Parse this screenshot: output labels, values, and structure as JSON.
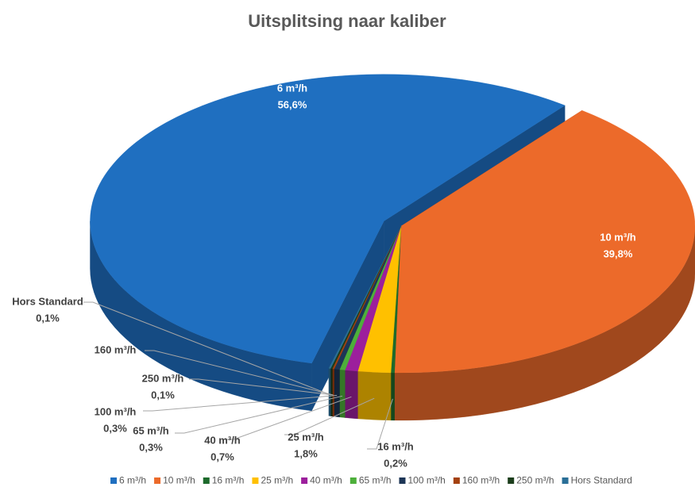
{
  "chart_data": {
    "type": "pie3d",
    "title": "Uitsplitsing naar kaliber",
    "categories": [
      "6 m³/h",
      "10 m³/h",
      "16 m³/h",
      "25 m³/h",
      "40 m³/h",
      "65 m³/h",
      "100 m³/h",
      "160 m³/h",
      "250 m³/h",
      "Hors Standard"
    ],
    "values": [
      56.6,
      39.8,
      0.2,
      1.8,
      0.7,
      0.3,
      0.3,
      0.1,
      0.1,
      0.1
    ],
    "value_labels": [
      "56,6%",
      "39,8%",
      "0,2%",
      "1,8%",
      "0,7%",
      "0,3%",
      "0,3%",
      null,
      "0,1%",
      "0,1%"
    ],
    "colors": [
      "#1f6fc0",
      "#ec6a2a",
      "#1d6a2c",
      "#ffc000",
      "#9c1f9c",
      "#4daf3a",
      "#1c3556",
      "#a4410f",
      "#1b3d1b",
      "#2a6f97"
    ],
    "legend": "bottom"
  }
}
